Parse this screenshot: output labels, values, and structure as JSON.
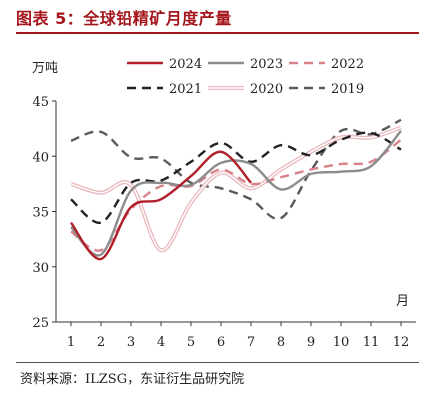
{
  "title": "图表 5：全球铅精矿月度产量",
  "source": "资料来源：ILZSG，东证衍生品研究院",
  "chart_data": {
    "type": "line",
    "ylabel": "万吨",
    "xlabel": "月",
    "ylim": [
      25,
      45
    ],
    "yticks": [
      25,
      30,
      35,
      40,
      45
    ],
    "x": [
      1,
      2,
      3,
      4,
      5,
      6,
      7,
      8,
      9,
      10,
      11,
      12
    ],
    "series": [
      {
        "name": "2024",
        "color": "#b01f2a",
        "dash": "solid",
        "values": [
          34.0,
          30.7,
          35.4,
          36.1,
          38.2,
          40.4,
          37.6,
          null,
          null,
          null,
          null,
          null
        ]
      },
      {
        "name": "2023",
        "color": "#8c8c8c",
        "dash": "solid",
        "values": [
          33.6,
          31.1,
          36.9,
          37.6,
          37.4,
          39.4,
          39.3,
          37.0,
          38.4,
          38.6,
          39.1,
          42.3
        ]
      },
      {
        "name": "2022",
        "color": "#d9828a",
        "dash": "dash",
        "values": [
          33.2,
          31.5,
          35.2,
          37.3,
          37.3,
          38.8,
          37.5,
          38.1,
          38.8,
          39.3,
          39.5,
          41.5
        ]
      },
      {
        "name": "2021",
        "color": "#222222",
        "dash": "dash",
        "values": [
          36.1,
          34.0,
          37.6,
          37.8,
          39.5,
          41.2,
          39.5,
          41.0,
          40.1,
          41.5,
          42.1,
          40.6
        ]
      },
      {
        "name": "2020",
        "color": "#eab8bd",
        "dash": "solid-double",
        "values": [
          37.5,
          36.7,
          37.4,
          31.5,
          35.8,
          38.5,
          37.1,
          38.8,
          40.4,
          41.7,
          41.7,
          42.6
        ]
      },
      {
        "name": "2019",
        "color": "#5a5a5a",
        "dash": "dash",
        "values": [
          41.4,
          42.2,
          39.9,
          39.8,
          37.6,
          37.1,
          36.1,
          34.4,
          38.7,
          42.3,
          42.0,
          43.3
        ]
      }
    ],
    "legend": "top-center"
  }
}
